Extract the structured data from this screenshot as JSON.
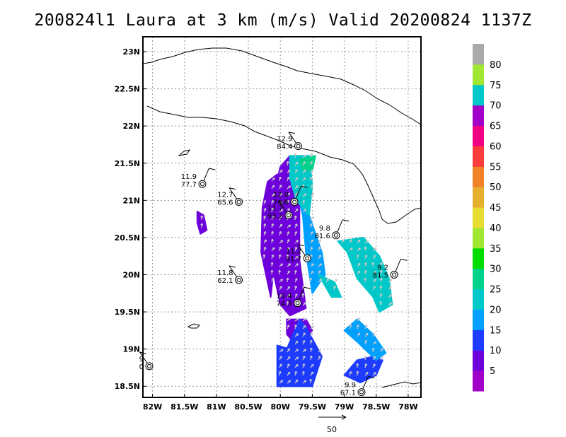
{
  "chart_data": {
    "type": "heatmap",
    "title": "200824l1 Laura at 3 km (m/s) Valid 20200824 1137Z",
    "xlim": [
      -82.15,
      -77.8
    ],
    "ylim": [
      18.35,
      23.2
    ],
    "x_ticks": [
      {
        "v": -82.0,
        "label": "82W"
      },
      {
        "v": -81.5,
        "label": "81.5W"
      },
      {
        "v": -81.0,
        "label": "81W"
      },
      {
        "v": -80.5,
        "label": "80.5W"
      },
      {
        "v": -80.0,
        "label": "80W"
      },
      {
        "v": -79.5,
        "label": "79.5W"
      },
      {
        "v": -79.0,
        "label": "79W"
      },
      {
        "v": -78.5,
        "label": "78.5W"
      },
      {
        "v": -78.0,
        "label": "78W"
      }
    ],
    "y_ticks": [
      {
        "v": 18.5,
        "label": "18.5N"
      },
      {
        "v": 19.0,
        "label": "19N"
      },
      {
        "v": 19.5,
        "label": "19.5N"
      },
      {
        "v": 20.0,
        "label": "20N"
      },
      {
        "v": 20.5,
        "label": "20.5N"
      },
      {
        "v": 21.0,
        "label": "21N"
      },
      {
        "v": 21.5,
        "label": "21.5N"
      },
      {
        "v": 22.0,
        "label": "22N"
      },
      {
        "v": 22.5,
        "label": "22.5N"
      },
      {
        "v": 23.0,
        "label": "23N"
      }
    ],
    "grid": true,
    "colorbar": {
      "levels": [
        0,
        5,
        10,
        15,
        20,
        25,
        30,
        35,
        40,
        45,
        50,
        55,
        60,
        65,
        70,
        75,
        80,
        85
      ],
      "labels": [
        "5",
        "10",
        "15",
        "20",
        "25",
        "30",
        "35",
        "40",
        "45",
        "50",
        "55",
        "60",
        "65",
        "70",
        "75",
        "80"
      ],
      "colors": [
        "#a000c8",
        "#6e00dc",
        "#1e3cff",
        "#00a0ff",
        "#00c8c8",
        "#00d28c",
        "#00dc00",
        "#a0e632",
        "#e6dc32",
        "#e6af2d",
        "#f08228",
        "#fa3c3c",
        "#f00082",
        "#a000c8",
        "#00c8c8",
        "#a0e632",
        "#aaaaaa"
      ]
    },
    "speed_regions": [
      {
        "speed": 5,
        "polygon": [
          [
            -80.0,
            21.45
          ],
          [
            -79.85,
            21.6
          ],
          [
            -79.75,
            21.55
          ],
          [
            -79.7,
            21.1
          ],
          [
            -79.7,
            20.2
          ],
          [
            -79.6,
            19.55
          ],
          [
            -79.85,
            19.45
          ],
          [
            -80.0,
            19.6
          ],
          [
            -80.1,
            20.0
          ],
          [
            -80.2,
            20.6
          ],
          [
            -80.1,
            21.1
          ]
        ]
      },
      {
        "speed": 5,
        "polygon": [
          [
            -80.2,
            21.25
          ],
          [
            -80.05,
            21.35
          ],
          [
            -80.05,
            20.5
          ],
          [
            -80.15,
            19.7
          ],
          [
            -80.3,
            20.3
          ],
          [
            -80.28,
            20.9
          ]
        ]
      },
      {
        "speed": 5,
        "polygon": [
          [
            -81.3,
            20.85
          ],
          [
            -81.2,
            20.8
          ],
          [
            -81.15,
            20.6
          ],
          [
            -81.25,
            20.55
          ],
          [
            -81.3,
            20.7
          ]
        ]
      },
      {
        "speed": 5,
        "polygon": [
          [
            -79.9,
            19.4
          ],
          [
            -79.6,
            19.4
          ],
          [
            -79.5,
            19.25
          ],
          [
            -79.75,
            19.05
          ],
          [
            -79.9,
            19.2
          ]
        ]
      },
      {
        "speed": 10,
        "polygon": [
          [
            -79.6,
            19.3
          ],
          [
            -79.7,
            19.4
          ],
          [
            -79.9,
            19.0
          ],
          [
            -80.05,
            18.5
          ],
          [
            -79.5,
            18.5
          ],
          [
            -79.35,
            18.9
          ]
        ]
      },
      {
        "speed": 10,
        "polygon": [
          [
            -80.05,
            19.05
          ],
          [
            -79.65,
            18.95
          ],
          [
            -79.5,
            18.5
          ],
          [
            -80.05,
            18.5
          ]
        ]
      },
      {
        "speed": 10,
        "polygon": [
          [
            -79.0,
            18.65
          ],
          [
            -78.8,
            18.85
          ],
          [
            -78.55,
            18.9
          ],
          [
            -78.4,
            18.85
          ],
          [
            -78.5,
            18.65
          ],
          [
            -78.75,
            18.55
          ]
        ]
      },
      {
        "speed": 15,
        "polygon": [
          [
            -79.7,
            21.0
          ],
          [
            -79.55,
            20.8
          ],
          [
            -79.35,
            20.3
          ],
          [
            -79.3,
            20.0
          ],
          [
            -79.5,
            19.75
          ],
          [
            -79.6,
            20.3
          ],
          [
            -79.65,
            20.8
          ]
        ]
      },
      {
        "speed": 15,
        "polygon": [
          [
            -78.8,
            19.4
          ],
          [
            -78.55,
            19.2
          ],
          [
            -78.35,
            18.95
          ],
          [
            -78.5,
            18.85
          ],
          [
            -78.8,
            19.1
          ],
          [
            -79.0,
            19.25
          ]
        ]
      },
      {
        "speed": 20,
        "polygon": [
          [
            -79.85,
            21.6
          ],
          [
            -79.55,
            21.6
          ],
          [
            -79.5,
            21.2
          ],
          [
            -79.55,
            20.8
          ],
          [
            -79.75,
            21.0
          ],
          [
            -79.85,
            21.3
          ]
        ]
      },
      {
        "speed": 20,
        "polygon": [
          [
            -79.1,
            20.45
          ],
          [
            -78.95,
            20.3
          ],
          [
            -78.8,
            19.95
          ],
          [
            -78.55,
            19.7
          ],
          [
            -78.45,
            19.5
          ],
          [
            -78.25,
            19.6
          ],
          [
            -78.3,
            19.95
          ],
          [
            -78.45,
            20.25
          ],
          [
            -78.7,
            20.5
          ]
        ]
      },
      {
        "speed": 20,
        "polygon": [
          [
            -79.4,
            20.0
          ],
          [
            -79.2,
            19.7
          ],
          [
            -79.05,
            19.7
          ],
          [
            -79.15,
            19.9
          ]
        ]
      },
      {
        "speed": 25,
        "polygon": [
          [
            -79.7,
            21.55
          ],
          [
            -79.45,
            21.6
          ],
          [
            -79.5,
            21.4
          ],
          [
            -79.65,
            21.4
          ]
        ]
      }
    ],
    "arrow_scale_label": "50",
    "observations": [
      {
        "lon": -79.72,
        "lat": 21.73,
        "upper": "12.9",
        "lower": "84.4"
      },
      {
        "lon": -81.22,
        "lat": 21.22,
        "upper": "11.9",
        "lower": "77.7"
      },
      {
        "lon": -80.65,
        "lat": 20.98,
        "upper": "12.7",
        "lower": "65.6"
      },
      {
        "lon": -79.78,
        "lat": 20.98,
        "upper": "12.0",
        "lower": "76.5"
      },
      {
        "lon": -79.87,
        "lat": 20.8,
        "upper": "11.7",
        "lower": "93.2"
      },
      {
        "lon": -79.13,
        "lat": 20.53,
        "upper": "9.8",
        "lower": "81.6"
      },
      {
        "lon": -79.58,
        "lat": 20.22,
        "upper": "11.2",
        "lower": "91.7"
      },
      {
        "lon": -78.22,
        "lat": 20.0,
        "upper": "9.2",
        "lower": "81.5"
      },
      {
        "lon": -80.65,
        "lat": 19.93,
        "upper": "11.8",
        "lower": "62.1"
      },
      {
        "lon": -79.73,
        "lat": 19.62,
        "upper": "10.4",
        "lower": "74.3"
      },
      {
        "lon": -82.05,
        "lat": 18.77,
        "upper": "9",
        "lower": "0"
      },
      {
        "lon": -78.73,
        "lat": 18.42,
        "upper": "9.9",
        "lower": "67.1"
      }
    ]
  }
}
